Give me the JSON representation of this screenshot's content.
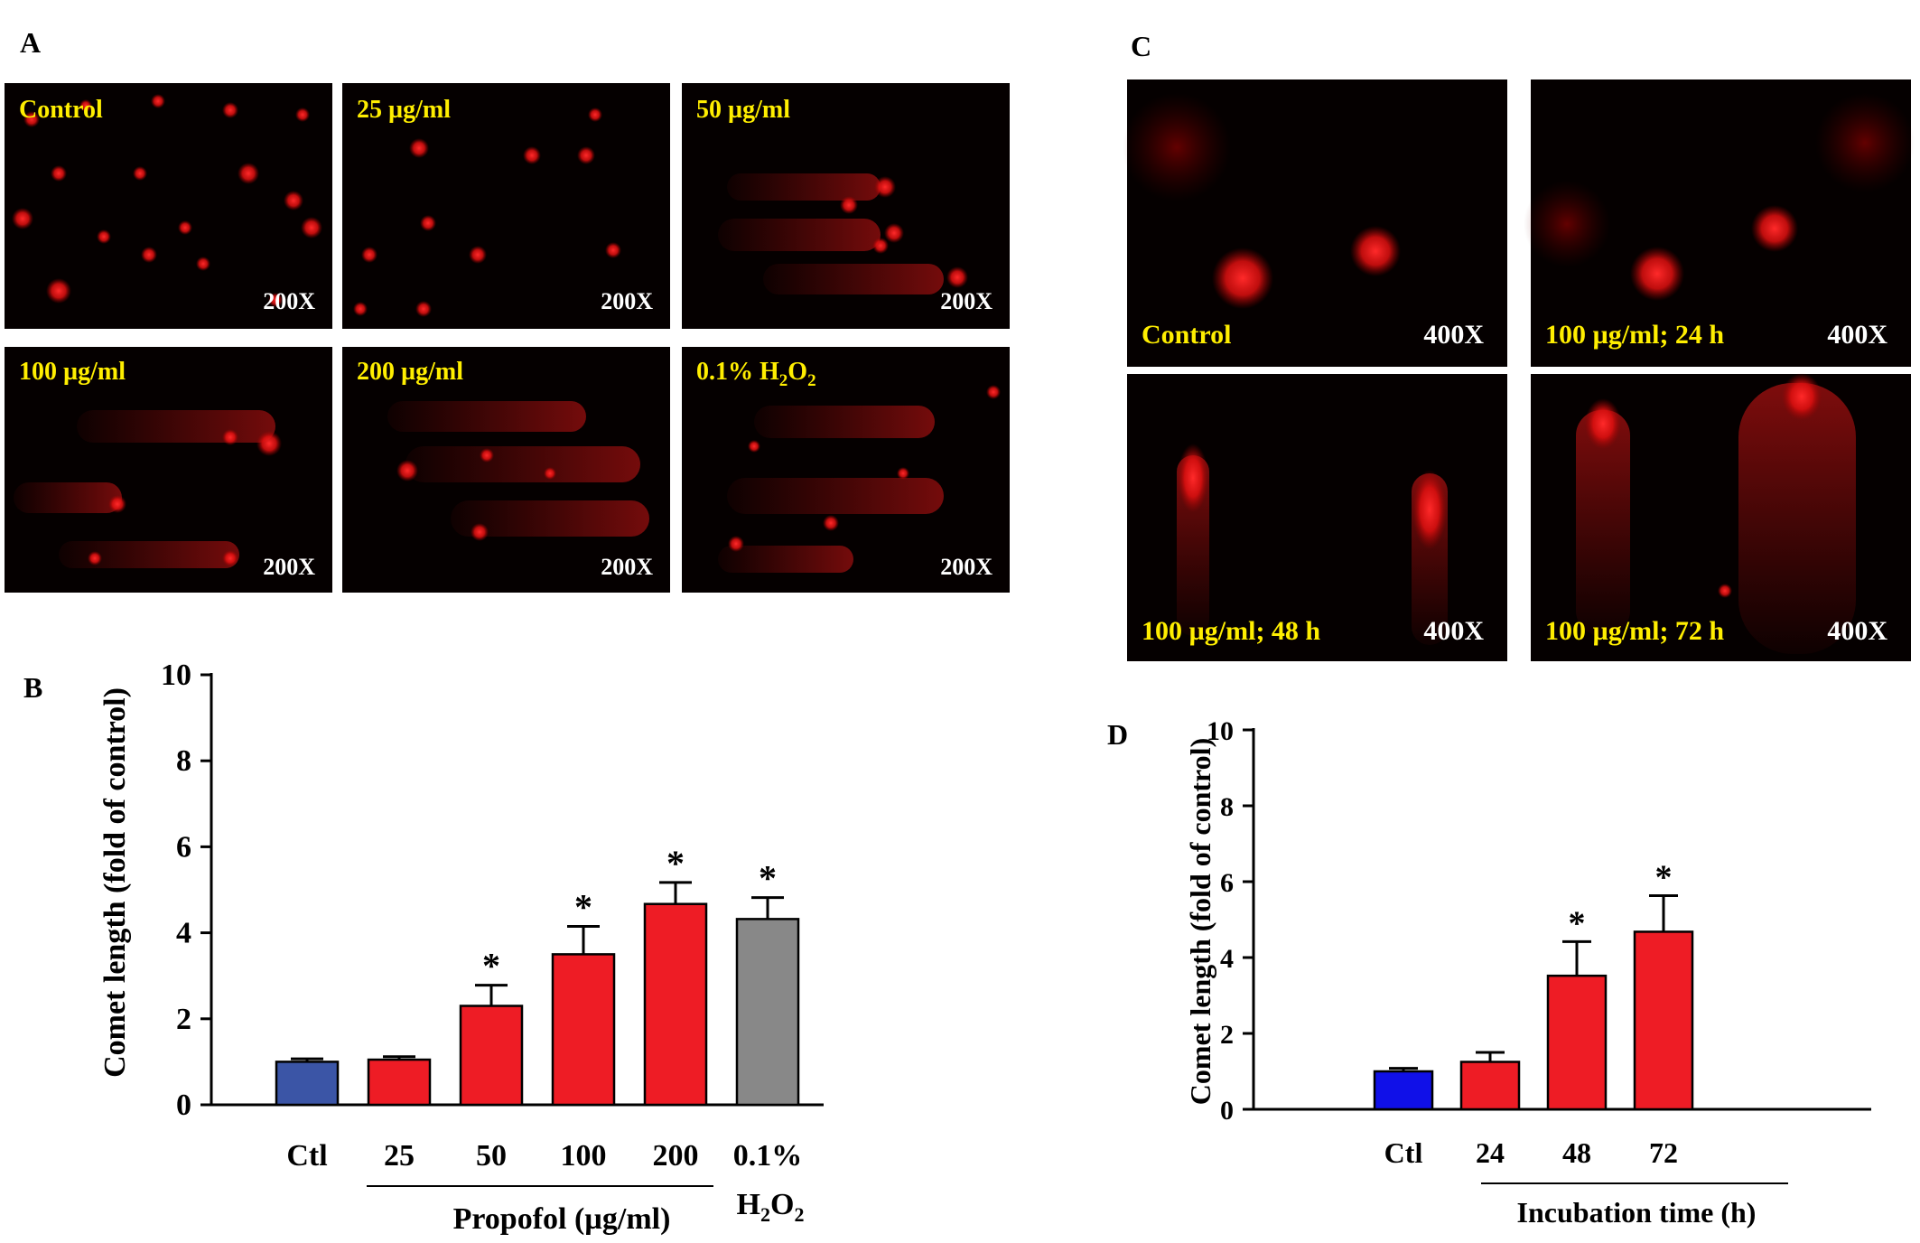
{
  "panel_letters": {
    "a": "A",
    "b": "B",
    "c": "C",
    "d": "D"
  },
  "colors": {
    "ctl_b": "#3b55a6",
    "ctl_d": "#1010e8",
    "treatment": "#ee1c25",
    "h2o2": "#888888",
    "micro_bg": "#050000",
    "cell": "#ff1a1a",
    "label_yellow": "#ffee00",
    "mag_white": "#ffffff"
  },
  "micrographs_a": [
    {
      "label": "Control",
      "mag": "200X"
    },
    {
      "label": "25 µg/ml",
      "mag": "200X"
    },
    {
      "label": "50 µg/ml",
      "mag": "200X"
    },
    {
      "label": "100 µg/ml",
      "mag": "200X"
    },
    {
      "label": "200 µg/ml",
      "mag": "200X"
    },
    {
      "label_main": "0.1% H",
      "label_sub1": "2",
      "label_mid": "O",
      "label_sub2": "2",
      "mag": "200X"
    }
  ],
  "micrographs_c": [
    {
      "label": "Control",
      "mag": "400X"
    },
    {
      "label": "100 µg/ml; 24 h",
      "mag": "400X"
    },
    {
      "label": "100 µg/ml; 48 h",
      "mag": "400X"
    },
    {
      "label": "100 µg/ml; 72 h",
      "mag": "400X"
    }
  ],
  "chart_data": [
    {
      "panel": "B",
      "type": "bar",
      "categories": [
        "Ctl",
        "25",
        "50",
        "100",
        "200",
        "0.1%"
      ],
      "values": [
        1.0,
        1.05,
        2.3,
        3.5,
        4.67,
        4.32
      ],
      "errors": [
        0.07,
        0.07,
        0.48,
        0.65,
        0.5,
        0.5
      ],
      "significant": [
        false,
        false,
        true,
        true,
        true,
        true
      ],
      "significance_marker": "*",
      "bar_colors": [
        "ctl",
        "treatment",
        "treatment",
        "treatment",
        "treatment",
        "h2o2"
      ],
      "ylabel": "Comet length (fold of control)",
      "ylim": [
        0,
        10
      ],
      "yticks": [
        0,
        2,
        4,
        6,
        8,
        10
      ],
      "group_label": "Propofol (µg/ml)",
      "h2o2_label": {
        "main": "H",
        "sub1": "2",
        "mid": "O",
        "sub2": "2"
      },
      "grid": false
    },
    {
      "panel": "D",
      "type": "bar",
      "categories": [
        "Ctl",
        "24",
        "48",
        "72"
      ],
      "values": [
        1.0,
        1.25,
        3.52,
        4.68
      ],
      "errors": [
        0.08,
        0.25,
        0.9,
        0.95
      ],
      "significant": [
        false,
        false,
        true,
        true
      ],
      "significance_marker": "*",
      "bar_colors": [
        "ctl",
        "treatment",
        "treatment",
        "treatment"
      ],
      "ylabel": "Comet length (fold of control)",
      "ylim": [
        0,
        10
      ],
      "yticks": [
        0,
        2,
        4,
        6,
        8,
        10
      ],
      "group_label": "Incubation time (h)",
      "grid": false
    }
  ]
}
